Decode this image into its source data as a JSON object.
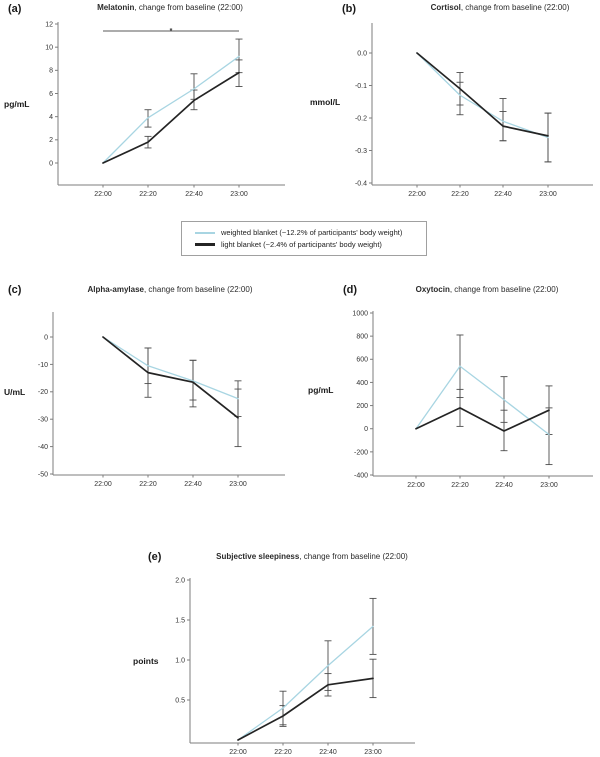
{
  "colors": {
    "weighted_blanket": "#a8d5e2",
    "light_blanket": "#242424",
    "error_bar": "#4d4d4d",
    "axis": "#7d7d7d"
  },
  "legend": {
    "items": [
      {
        "name": "weighted blanket",
        "label": "weighted blanket (~12.2% of participants' body weight)",
        "color": "#a8d5e2"
      },
      {
        "name": "light blanket",
        "label": "light blanket (~2.4% of participants' body weight)",
        "color": "#242424"
      }
    ]
  },
  "chart_data": [
    {
      "type": "line",
      "panel_label": "(a)",
      "title_bold": "Melatonin",
      "title_rest": ", change from baseline (22:00)",
      "ylabel": "pg/mL",
      "x": [
        "22:00",
        "22:20",
        "22:40",
        "23:00"
      ],
      "ylim": [
        -1.9,
        12
      ],
      "yticks": [
        {
          "v": 12,
          "label": "12"
        },
        {
          "v": 10,
          "label": "10"
        },
        {
          "v": 8,
          "label": "8"
        },
        {
          "v": 6,
          "label": "6"
        },
        {
          "v": 4,
          "label": "4"
        },
        {
          "v": 2,
          "label": "2"
        },
        {
          "v": 0,
          "label": "0"
        }
      ],
      "series": [
        {
          "name": "weighted blanket",
          "color": "#a8d5e2",
          "values": [
            0,
            3.9,
            6.4,
            9.2
          ],
          "err_lo": [
            null,
            3.1,
            5.5,
            7.8
          ],
          "err_hi": [
            null,
            4.6,
            7.7,
            10.7
          ]
        },
        {
          "name": "light blanket",
          "color": "#242424",
          "values": [
            0,
            1.8,
            5.4,
            7.8
          ],
          "err_lo": [
            null,
            1.3,
            4.6,
            6.6
          ],
          "err_hi": [
            null,
            2.3,
            6.3,
            8.9
          ]
        }
      ],
      "significance": {
        "label": "*",
        "from_index": 0,
        "to_index": 3,
        "y": 11.4
      }
    },
    {
      "type": "line",
      "panel_label": "(b)",
      "title_bold": "Cortisol",
      "title_rest": ", change from baseline (22:00)",
      "ylabel": "mmol/L",
      "x": [
        "22:00",
        "22:20",
        "22:40",
        "23:00"
      ],
      "ylim": [
        -0.41,
        0.09
      ],
      "yticks": [
        {
          "v": 0,
          "label": "0.0"
        },
        {
          "v": -0.1,
          "label": "-0.1"
        },
        {
          "v": -0.2,
          "label": "-0.2"
        },
        {
          "v": -0.3,
          "label": "-0.3"
        },
        {
          "v": -0.4,
          "label": "-0.4"
        }
      ],
      "series": [
        {
          "name": "weighted blanket",
          "color": "#a8d5e2",
          "values": [
            0,
            -0.13,
            -0.21,
            -0.26
          ],
          "err_lo": [
            null,
            -0.19,
            -0.27,
            -0.335
          ],
          "err_hi": [
            null,
            -0.09,
            -0.14,
            -0.185
          ]
        },
        {
          "name": "light blanket",
          "color": "#242424",
          "values": [
            0,
            -0.11,
            -0.225,
            -0.255
          ],
          "err_lo": [
            null,
            -0.16,
            -0.27,
            -0.335
          ],
          "err_hi": [
            null,
            -0.06,
            -0.18,
            -0.185
          ]
        }
      ],
      "significance": null
    },
    {
      "type": "line",
      "panel_label": "(c)",
      "title_bold": "Alpha-amylase",
      "title_rest": ", change from baseline (22:00)",
      "ylabel": "U/mL",
      "x": [
        "22:00",
        "22:20",
        "22:40",
        "23:00"
      ],
      "ylim": [
        -50,
        9
      ],
      "yticks": [
        {
          "v": 0,
          "label": "0"
        },
        {
          "v": -10,
          "label": "-10"
        },
        {
          "v": -20,
          "label": "-20"
        },
        {
          "v": -30,
          "label": "-30"
        },
        {
          "v": -40,
          "label": "-40"
        },
        {
          "v": -50,
          "label": "-50"
        }
      ],
      "series": [
        {
          "name": "weighted blanket",
          "color": "#a8d5e2",
          "values": [
            0,
            -10.5,
            -16,
            -22.5
          ],
          "err_lo": [
            null,
            -17,
            -23,
            -29
          ],
          "err_hi": [
            null,
            -4,
            -8.5,
            -16
          ]
        },
        {
          "name": "light blanket",
          "color": "#242424",
          "values": [
            0,
            -13,
            -16.5,
            -29.5
          ],
          "err_lo": [
            null,
            -22,
            -25.5,
            -40
          ],
          "err_hi": [
            null,
            -4,
            -8.5,
            -19
          ]
        }
      ],
      "significance": null
    },
    {
      "type": "line",
      "panel_label": "(d)",
      "title_bold": "Oxytocin",
      "title_rest": ", change from baseline (22:00)",
      "ylabel": "pg/mL",
      "x": [
        "22:00",
        "22:20",
        "22:40",
        "23:00"
      ],
      "ylim": [
        -400,
        1015
      ],
      "yticks": [
        {
          "v": 1000,
          "label": "1000"
        },
        {
          "v": 800,
          "label": "800"
        },
        {
          "v": 600,
          "label": "600"
        },
        {
          "v": 400,
          "label": "400"
        },
        {
          "v": 200,
          "label": "200"
        },
        {
          "v": 0,
          "label": "0"
        },
        {
          "v": -200,
          "label": "-200"
        },
        {
          "v": -400,
          "label": "-400"
        }
      ],
      "series": [
        {
          "name": "weighted blanket",
          "color": "#a8d5e2",
          "values": [
            0,
            540,
            250,
            -50
          ],
          "err_lo": [
            null,
            270,
            55,
            -310
          ],
          "err_hi": [
            null,
            810,
            450,
            180
          ]
        },
        {
          "name": "light blanket",
          "color": "#242424",
          "values": [
            0,
            180,
            -20,
            160
          ],
          "err_lo": [
            null,
            20,
            -190,
            -50
          ],
          "err_hi": [
            null,
            340,
            160,
            370
          ]
        }
      ],
      "significance": null
    },
    {
      "type": "line",
      "panel_label": "(e)",
      "title_bold": "Subjective sleepiness",
      "title_rest": ", change from baseline (22:00)",
      "ylabel": "points",
      "x": [
        "22:00",
        "22:20",
        "22:40",
        "23:00"
      ],
      "ylim": [
        0,
        2.03
      ],
      "yticks": [
        {
          "v": 2.0,
          "label": "2.0"
        },
        {
          "v": 1.5,
          "label": "1.5"
        },
        {
          "v": 1.0,
          "label": "1.0"
        },
        {
          "v": 0.5,
          "label": "0.5"
        }
      ],
      "series": [
        {
          "name": "weighted blanket",
          "color": "#a8d5e2",
          "values": [
            0,
            0.4,
            0.93,
            1.42
          ],
          "err_lo": [
            null,
            0.19,
            0.62,
            1.07
          ],
          "err_hi": [
            null,
            0.61,
            1.24,
            1.77
          ]
        },
        {
          "name": "light blanket",
          "color": "#242424",
          "values": [
            0,
            0.3,
            0.69,
            0.77
          ],
          "err_lo": [
            null,
            0.17,
            0.55,
            0.53
          ],
          "err_hi": [
            null,
            0.43,
            0.83,
            1.01
          ]
        }
      ],
      "significance": null
    }
  ]
}
